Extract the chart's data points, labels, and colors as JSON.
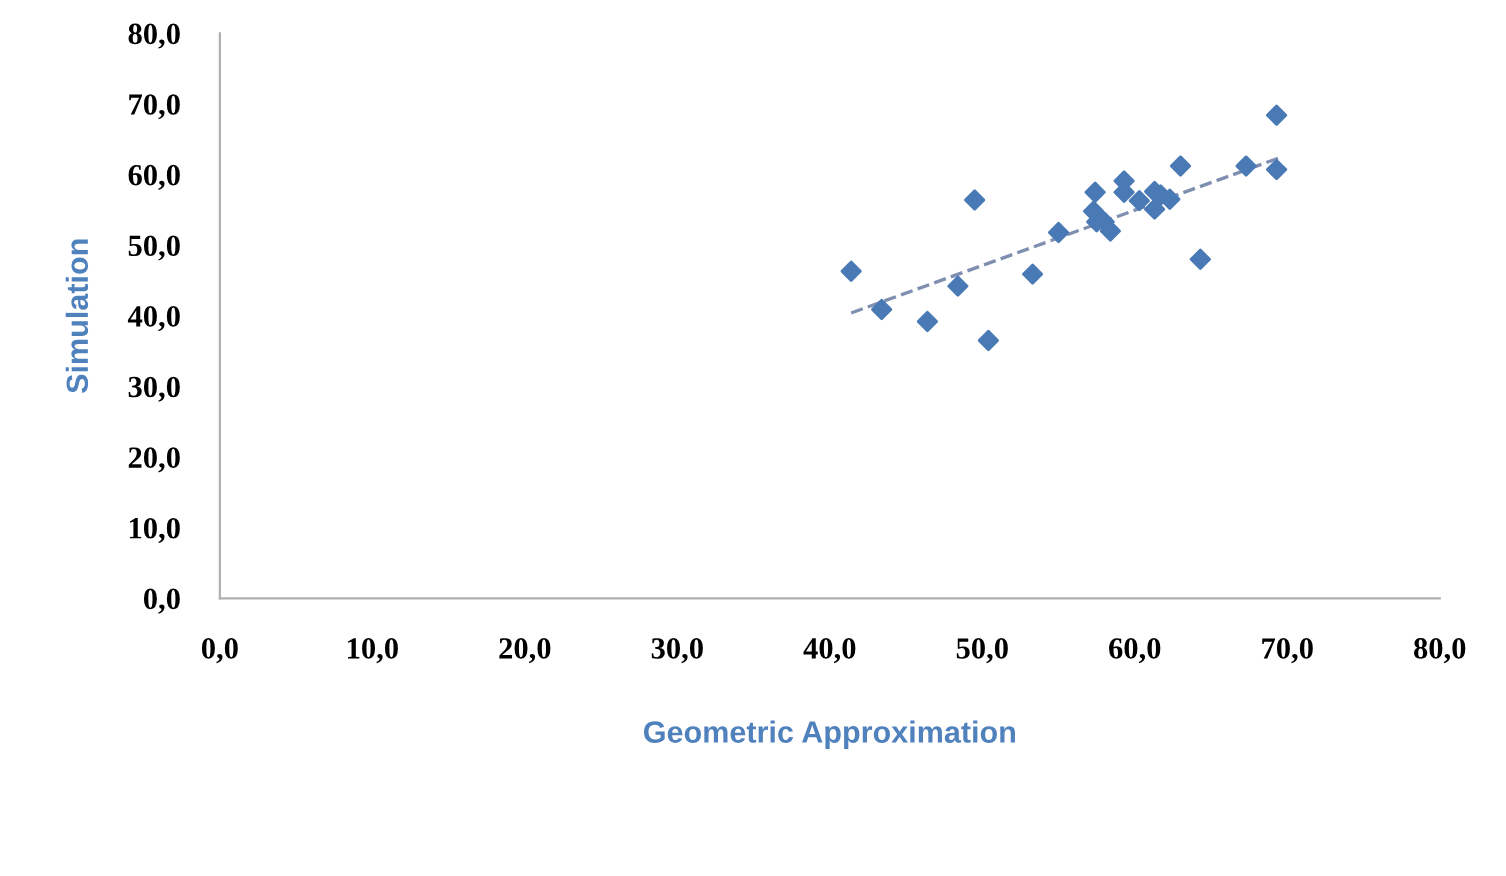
{
  "chart_data": {
    "type": "scatter",
    "xlabel": "Geometric Approximation",
    "ylabel": "Simulation",
    "grid": false,
    "legend": false,
    "xlim": [
      0,
      80
    ],
    "ylim": [
      0,
      80
    ],
    "xticks": [
      {
        "value": 0,
        "label": "0,0"
      },
      {
        "value": 10,
        "label": "10,0"
      },
      {
        "value": 20,
        "label": "20,0"
      },
      {
        "value": 30,
        "label": "30,0"
      },
      {
        "value": 40,
        "label": "40,0"
      },
      {
        "value": 50,
        "label": "50,0"
      },
      {
        "value": 60,
        "label": "60,0"
      },
      {
        "value": 70,
        "label": "70,0"
      },
      {
        "value": 80,
        "label": "80,0"
      }
    ],
    "yticks": [
      {
        "value": 0,
        "label": "0,0"
      },
      {
        "value": 10,
        "label": "10,0"
      },
      {
        "value": 20,
        "label": "20,0"
      },
      {
        "value": 30,
        "label": "30,0"
      },
      {
        "value": 40,
        "label": "40,0"
      },
      {
        "value": 50,
        "label": "50,0"
      },
      {
        "value": 60,
        "label": "60,0"
      },
      {
        "value": 70,
        "label": "70,0"
      },
      {
        "value": 80,
        "label": "80,0"
      }
    ],
    "series": [
      {
        "marker": "diamond",
        "color": "#4a7ab5",
        "x": [
          41.4,
          43.4,
          46.4,
          48.4,
          49.5,
          50.4,
          53.3,
          55.0,
          57.4,
          57.3,
          57.5,
          58.0,
          58.4,
          59.3,
          59.3,
          60.3,
          61.3,
          61.7,
          61.3,
          62.3,
          63.0,
          64.3,
          67.3,
          69.3,
          69.3
        ],
        "values": [
          46.3,
          40.9,
          39.2,
          44.2,
          56.4,
          36.5,
          45.9,
          51.8,
          57.5,
          54.8,
          53.3,
          53.3,
          52.0,
          59.1,
          57.5,
          56.3,
          57.6,
          57.1,
          55.1,
          56.5,
          61.2,
          48.0,
          61.2,
          68.4,
          60.7
        ]
      },
      {
        "type": "line",
        "marker": "none",
        "color": "#7f8fb0",
        "line_style": "dashed",
        "x": [
          41.4,
          69.4
        ],
        "values": [
          40.4,
          62.3
        ]
      }
    ]
  }
}
